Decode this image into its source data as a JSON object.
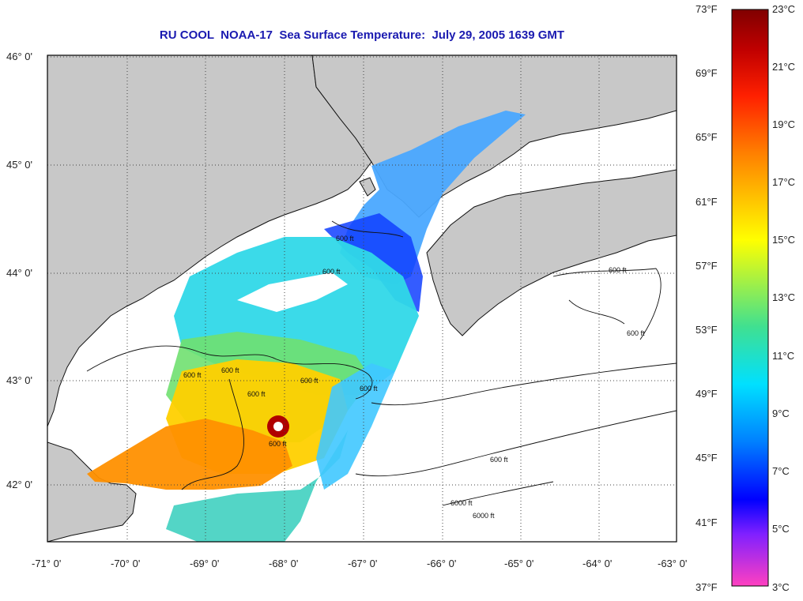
{
  "title": "RU COOL  NOAA-17  Sea Surface Temperature:  July 29, 2005 1639 GMT",
  "latitude_labels": [
    "46° 0'",
    "45° 0'",
    "44° 0'",
    "43° 0'",
    "42° 0'"
  ],
  "longitude_labels": [
    "-71° 0'",
    "-70° 0'",
    "-69° 0'",
    "-68° 0'",
    "-67° 0'",
    "-66° 0'",
    "-65° 0'",
    "-64° 0'",
    "-63° 0'"
  ],
  "contour_labels": [
    "600 ft",
    "600 ft",
    "600 ft",
    "600 ft",
    "600 ft",
    "600 ft",
    "600 ft",
    "600 ft",
    "600 ft",
    "600 ft",
    "600 ft",
    "6000 ft",
    "6000 ft"
  ],
  "colorbar": {
    "fahrenheit_labels": [
      "73°F",
      "69°F",
      "65°F",
      "61°F",
      "57°F",
      "53°F",
      "49°F",
      "45°F",
      "41°F",
      "37°F"
    ],
    "celsius_labels": [
      "23°C",
      "21°C",
      "19°C",
      "17°C",
      "15°C",
      "13°C",
      "11°C",
      "9°C",
      "7°C",
      "5°C",
      "3°C"
    ]
  },
  "colors": {
    "title": "#1a1ab0",
    "land": "#c8c8c8",
    "ocean": "#ffffff",
    "grid": "#444444"
  }
}
